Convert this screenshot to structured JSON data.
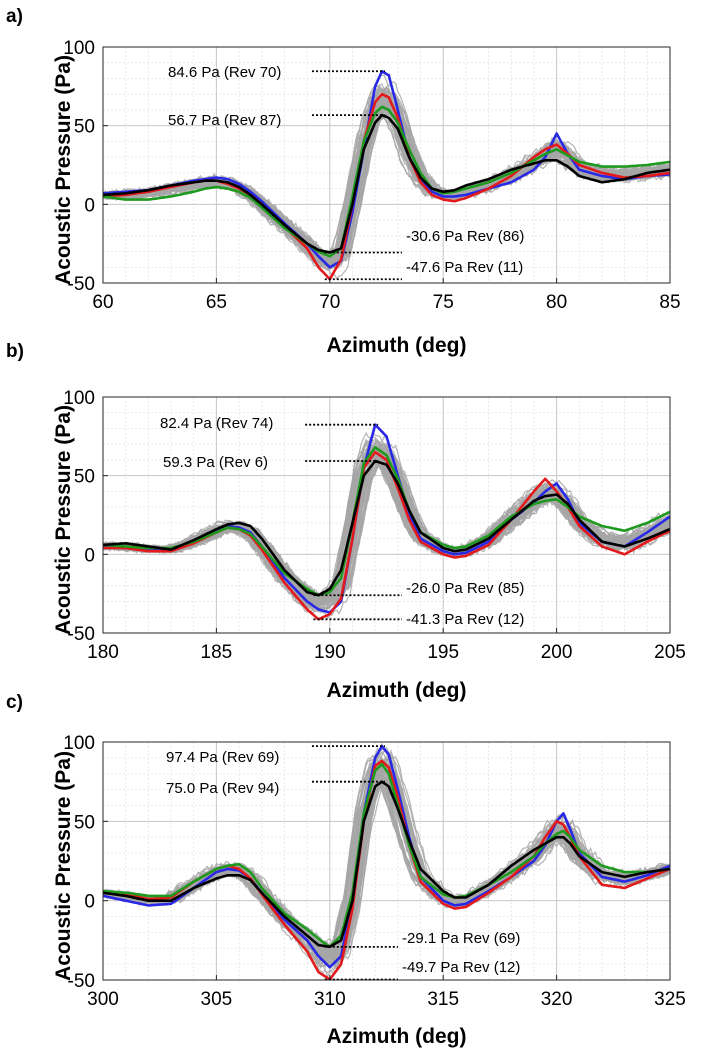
{
  "chart_data": [
    {
      "type": "line",
      "panel_label": "a)",
      "xlabel": "Azimuth (deg)",
      "ylabel": "Acoustic Pressure (Pa)",
      "xlim": [
        60,
        85
      ],
      "ylim": [
        -50,
        100
      ],
      "xticks": [
        60,
        65,
        70,
        75,
        80,
        85
      ],
      "yticks": [
        -50,
        0,
        50,
        100
      ],
      "grid": true,
      "minor_grid": true,
      "background_band": {
        "color": "#a6a6a6",
        "description": "all revolutions"
      },
      "series": [
        {
          "color": "#2828e6",
          "x": [
            60,
            61,
            62,
            63,
            64,
            64.5,
            65,
            65.5,
            66,
            66.5,
            67,
            68,
            69,
            69.5,
            70,
            70.5,
            71,
            71.5,
            72,
            72.3,
            72.6,
            73,
            73.5,
            74,
            74.5,
            75,
            75.5,
            76,
            77,
            78,
            79,
            79.5,
            80,
            80.5,
            81,
            82,
            83,
            84,
            85
          ],
          "y": [
            7,
            8,
            9,
            12,
            15,
            16,
            17,
            16,
            13,
            8,
            2,
            -12,
            -25,
            -33,
            -40,
            -36,
            -5,
            35,
            75,
            84.6,
            82,
            60,
            30,
            15,
            8,
            5,
            5,
            6,
            10,
            14,
            22,
            30,
            45,
            32,
            22,
            18,
            16,
            18,
            19
          ]
        },
        {
          "color": "#e31a1c",
          "x": [
            60,
            61,
            62,
            63,
            64,
            64.5,
            65,
            65.5,
            66,
            66.5,
            67,
            68,
            69,
            69.5,
            70,
            70.5,
            71,
            71.5,
            72,
            72.3,
            72.6,
            73,
            73.5,
            74,
            74.5,
            75,
            75.5,
            76,
            77,
            78,
            79,
            79.5,
            80,
            80.5,
            81,
            82,
            83,
            84,
            85
          ],
          "y": [
            5,
            6,
            8,
            11,
            14,
            15,
            15,
            13,
            10,
            6,
            0,
            -14,
            -28,
            -40,
            -47.6,
            -35,
            0,
            40,
            65,
            70,
            68,
            55,
            30,
            14,
            6,
            3,
            2,
            4,
            10,
            18,
            30,
            35,
            38,
            32,
            25,
            20,
            17,
            18,
            20
          ]
        },
        {
          "color": "#1e9a1e",
          "x": [
            60,
            61,
            62,
            63,
            64,
            64.5,
            65,
            65.5,
            66,
            66.5,
            67,
            68,
            69,
            69.5,
            70,
            70.5,
            71,
            71.5,
            72,
            72.3,
            72.6,
            73,
            73.5,
            74,
            74.5,
            75,
            75.5,
            76,
            77,
            78,
            79,
            79.5,
            80,
            80.5,
            81,
            82,
            83,
            84,
            85
          ],
          "y": [
            5,
            3,
            3,
            5,
            8,
            10,
            11,
            10,
            8,
            4,
            -2,
            -15,
            -25,
            -30,
            -33,
            -28,
            5,
            40,
            58,
            62,
            60,
            52,
            35,
            20,
            10,
            7,
            8,
            10,
            14,
            20,
            28,
            32,
            35,
            31,
            27,
            24,
            24,
            25,
            27
          ]
        },
        {
          "color": "#000000",
          "x": [
            60,
            61,
            62,
            63,
            64,
            64.5,
            65,
            65.5,
            66,
            66.5,
            67,
            68,
            69,
            69.5,
            70,
            70.5,
            71,
            71.5,
            72,
            72.3,
            72.6,
            73,
            73.5,
            74,
            74.5,
            75,
            75.5,
            76,
            77,
            78,
            79,
            79.5,
            80,
            80.5,
            81,
            82,
            83,
            84,
            85
          ],
          "y": [
            6,
            7,
            9,
            12,
            14,
            15,
            15,
            14,
            11,
            6,
            0,
            -13,
            -25,
            -29,
            -30.6,
            -28,
            0,
            35,
            52,
            56.7,
            55,
            48,
            30,
            17,
            10,
            8,
            9,
            12,
            16,
            22,
            26,
            28,
            28,
            24,
            18,
            14,
            16,
            20,
            22
          ]
        }
      ],
      "annotations": [
        {
          "text": "84.6 Pa (Rev 70)",
          "value": 84.6,
          "x": 72.3
        },
        {
          "text": "56.7 Pa (Rev 87)",
          "value": 56.7,
          "x": 72.3
        },
        {
          "text": "-30.6 Pa Rev (86)",
          "value": -30.6,
          "x": 70
        },
        {
          "text": "-47.6 Pa Rev (11)",
          "value": -47.6,
          "x": 70
        }
      ]
    },
    {
      "type": "line",
      "panel_label": "b)",
      "xlabel": "Azimuth (deg)",
      "ylabel": "Acoustic Pressure (Pa)",
      "xlim": [
        180,
        205
      ],
      "ylim": [
        -50,
        100
      ],
      "xticks": [
        180,
        185,
        190,
        195,
        200,
        205
      ],
      "yticks": [
        -50,
        0,
        50,
        100
      ],
      "grid": true,
      "minor_grid": true,
      "background_band": {
        "color": "#a6a6a6",
        "description": "all revolutions"
      },
      "series": [
        {
          "color": "#2828e6",
          "x": [
            180,
            181,
            182,
            183,
            184,
            185,
            185.5,
            186,
            186.5,
            187,
            188,
            189,
            189.5,
            190,
            190.5,
            191,
            191.5,
            192,
            192.5,
            193,
            193.5,
            194,
            195,
            195.5,
            196,
            197,
            198,
            199,
            199.5,
            200,
            200.5,
            201,
            202,
            203,
            204,
            205
          ],
          "y": [
            5,
            4,
            3,
            3,
            8,
            15,
            18,
            17,
            14,
            5,
            -15,
            -30,
            -35,
            -37,
            -30,
            10,
            55,
            82.4,
            75,
            50,
            25,
            10,
            2,
            0,
            1,
            8,
            22,
            33,
            40,
            45,
            35,
            20,
            8,
            5,
            14,
            24
          ]
        },
        {
          "color": "#e31a1c",
          "x": [
            180,
            181,
            182,
            183,
            184,
            185,
            185.5,
            186,
            186.5,
            187,
            188,
            189,
            189.5,
            190,
            190.5,
            191,
            191.5,
            192,
            192.5,
            193,
            193.5,
            194,
            195,
            195.5,
            196,
            197,
            198,
            199,
            199.5,
            200,
            200.5,
            201,
            202,
            203,
            204,
            205
          ],
          "y": [
            4,
            4,
            2,
            2,
            7,
            14,
            17,
            16,
            12,
            3,
            -18,
            -35,
            -41.3,
            -38,
            -28,
            10,
            55,
            65,
            60,
            42,
            22,
            8,
            0,
            -2,
            -1,
            6,
            22,
            40,
            48,
            40,
            30,
            18,
            5,
            0,
            8,
            15
          ]
        },
        {
          "color": "#1e9a1e",
          "x": [
            180,
            181,
            182,
            183,
            184,
            185,
            185.5,
            186,
            186.5,
            187,
            188,
            189,
            189.5,
            190,
            190.5,
            191,
            191.5,
            192,
            192.5,
            193,
            193.5,
            194,
            195,
            195.5,
            196,
            197,
            198,
            199,
            199.5,
            200,
            200.5,
            201,
            202,
            203,
            204,
            205
          ],
          "y": [
            6,
            5,
            4,
            4,
            8,
            14,
            17,
            16,
            13,
            5,
            -12,
            -22,
            -26,
            -24,
            -15,
            20,
            58,
            68,
            63,
            48,
            28,
            14,
            6,
            4,
            5,
            12,
            24,
            32,
            34,
            35,
            30,
            24,
            18,
            15,
            20,
            27
          ]
        },
        {
          "color": "#000000",
          "x": [
            180,
            181,
            182,
            183,
            184,
            185,
            185.5,
            186,
            186.5,
            187,
            188,
            189,
            189.5,
            190,
            190.5,
            191,
            191.5,
            192,
            192.5,
            193,
            193.5,
            194,
            195,
            195.5,
            196,
            197,
            198,
            199,
            199.5,
            200,
            200.5,
            201,
            202,
            203,
            204,
            205
          ],
          "y": [
            6,
            7,
            5,
            3,
            9,
            16,
            19,
            20,
            18,
            10,
            -10,
            -24,
            -26,
            -22,
            -10,
            20,
            50,
            59.3,
            57,
            45,
            28,
            14,
            4,
            2,
            3,
            10,
            22,
            34,
            37,
            38,
            32,
            22,
            8,
            5,
            10,
            16
          ]
        }
      ],
      "annotations": [
        {
          "text": "82.4 Pa (Rev 74)",
          "value": 82.4,
          "x": 192
        },
        {
          "text": "59.3 Pa (Rev 6)",
          "value": 59.3,
          "x": 192
        },
        {
          "text": "-26.0 Pa Rev (85)",
          "value": -26.0,
          "x": 189.5
        },
        {
          "text": "-41.3 Pa Rev (12)",
          "value": -41.3,
          "x": 189.5
        }
      ]
    },
    {
      "type": "line",
      "panel_label": "c)",
      "xlabel": "Azimuth (deg)",
      "ylabel": "Acoustic Pressure (Pa)",
      "xlim": [
        300,
        325
      ],
      "ylim": [
        -50,
        100
      ],
      "xticks": [
        300,
        305,
        310,
        315,
        320,
        325
      ],
      "yticks": [
        -50,
        0,
        50,
        100
      ],
      "grid": true,
      "minor_grid": true,
      "background_band": {
        "color": "#a6a6a6",
        "description": "all revolutions"
      },
      "series": [
        {
          "color": "#2828e6",
          "x": [
            300,
            301,
            302,
            303,
            304,
            305,
            305.5,
            306,
            306.5,
            307,
            308,
            309,
            309.5,
            310,
            310.5,
            311,
            311.5,
            312,
            312.3,
            312.6,
            313,
            313.5,
            314,
            315,
            315.5,
            316,
            317,
            318,
            319,
            319.5,
            320,
            320.3,
            320.6,
            321,
            322,
            323,
            324,
            325
          ],
          "y": [
            3,
            0,
            -3,
            -2,
            8,
            18,
            20,
            19,
            14,
            5,
            -12,
            -25,
            -35,
            -42,
            -35,
            0,
            55,
            90,
            97.4,
            92,
            70,
            40,
            15,
            0,
            -3,
            -2,
            6,
            15,
            25,
            35,
            50,
            55,
            45,
            30,
            15,
            12,
            16,
            22
          ]
        },
        {
          "color": "#e31a1c",
          "x": [
            300,
            301,
            302,
            303,
            304,
            305,
            305.5,
            306,
            306.5,
            307,
            308,
            309,
            309.5,
            310,
            310.5,
            311,
            311.5,
            312,
            312.3,
            312.6,
            313,
            313.5,
            314,
            315,
            315.5,
            316,
            317,
            318,
            319,
            319.5,
            320,
            320.3,
            320.6,
            321,
            322,
            323,
            324,
            325
          ],
          "y": [
            5,
            4,
            1,
            2,
            12,
            20,
            22,
            20,
            14,
            4,
            -15,
            -32,
            -45,
            -49.7,
            -40,
            -5,
            50,
            85,
            88,
            84,
            65,
            35,
            12,
            -2,
            -5,
            -4,
            5,
            15,
            28,
            40,
            50,
            48,
            40,
            28,
            10,
            8,
            14,
            20
          ]
        },
        {
          "color": "#1e9a1e",
          "x": [
            300,
            301,
            302,
            303,
            304,
            305,
            305.5,
            306,
            306.5,
            307,
            308,
            309,
            309.5,
            310,
            310.5,
            311,
            311.5,
            312,
            312.3,
            312.6,
            313,
            313.5,
            314,
            315,
            315.5,
            316,
            317,
            318,
            319,
            319.5,
            320,
            320.3,
            320.6,
            321,
            322,
            323,
            324,
            325
          ],
          "y": [
            6,
            5,
            3,
            3,
            12,
            20,
            22,
            23,
            18,
            8,
            -8,
            -18,
            -24,
            -29.1,
            -22,
            5,
            55,
            82,
            86,
            80,
            60,
            35,
            15,
            4,
            2,
            3,
            10,
            18,
            28,
            36,
            42,
            44,
            40,
            32,
            22,
            18,
            18,
            20
          ]
        },
        {
          "color": "#000000",
          "x": [
            300,
            301,
            302,
            303,
            304,
            305,
            305.5,
            306,
            306.5,
            307,
            308,
            309,
            309.5,
            310,
            310.5,
            311,
            311.5,
            312,
            312.3,
            312.6,
            313,
            313.5,
            314,
            315,
            315.5,
            316,
            317,
            318,
            319,
            319.5,
            320,
            320.3,
            320.6,
            321,
            322,
            323,
            324,
            325
          ],
          "y": [
            5,
            3,
            0,
            0,
            8,
            14,
            16,
            16,
            13,
            5,
            -10,
            -22,
            -28,
            -29.1,
            -25,
            0,
            50,
            72,
            75,
            72,
            58,
            38,
            20,
            6,
            2,
            2,
            10,
            22,
            32,
            36,
            40,
            40,
            36,
            28,
            18,
            15,
            18,
            20
          ]
        }
      ],
      "annotations": [
        {
          "text": "97.4 Pa (Rev 69)",
          "value": 97.4,
          "x": 312.3
        },
        {
          "text": "75.0 Pa (Rev 94)",
          "value": 75.0,
          "x": 312.3
        },
        {
          "text": "-29.1 Pa Rev (69)",
          "value": -29.1,
          "x": 310
        },
        {
          "text": "-49.7 Pa Rev (12)",
          "value": -49.7,
          "x": 310
        }
      ]
    }
  ]
}
